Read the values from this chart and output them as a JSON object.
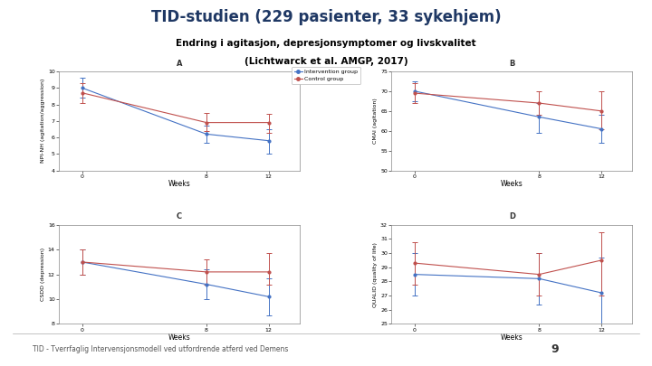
{
  "title": "TID-studien (229 pasienter, 33 sykehjem)",
  "subtitle1": "Endring i agitasjon, depresjonsymptomer og livskvalitet",
  "subtitle2": "(Lichtwarck et al. AMGP, 2017)",
  "footer": "TID - Tverrfaglig Intervensjonsmodell ved utfordrende atferd ved Demens",
  "page_number": "9",
  "title_color": "#1F3864",
  "subtitle_color": "#000000",
  "blue_color": "#4472C4",
  "red_color": "#C0504D",
  "weeks": [
    0,
    8,
    12
  ],
  "panel_A": {
    "label": "A",
    "ylabel": "NPI-NH (agitation/aggression)",
    "xlabel": "Weeks",
    "ylim": [
      4,
      10
    ],
    "yticks": [
      4,
      5,
      6,
      7,
      8,
      9,
      10
    ],
    "intervention": {
      "y": [
        9.0,
        6.2,
        5.8
      ],
      "yerr_lo": [
        0.6,
        0.5,
        0.8
      ],
      "yerr_hi": [
        0.6,
        0.5,
        0.7
      ]
    },
    "control": {
      "y": [
        8.7,
        6.9,
        6.9
      ],
      "yerr_lo": [
        0.6,
        0.5,
        0.6
      ],
      "yerr_hi": [
        0.6,
        0.6,
        0.5
      ]
    }
  },
  "panel_B": {
    "label": "B",
    "ylabel": "CMAI (agitation)",
    "xlabel": "Weeks",
    "ylim": [
      50,
      75
    ],
    "yticks": [
      50,
      55,
      60,
      65,
      70,
      75
    ],
    "intervention": {
      "y": [
        70.0,
        63.5,
        60.5
      ],
      "yerr_lo": [
        2.5,
        4.0,
        3.5
      ],
      "yerr_hi": [
        2.5,
        3.5,
        3.5
      ]
    },
    "control": {
      "y": [
        69.5,
        67.0,
        65.0
      ],
      "yerr_lo": [
        2.5,
        3.0,
        4.5
      ],
      "yerr_hi": [
        2.5,
        3.0,
        5.0
      ]
    }
  },
  "panel_C": {
    "label": "C",
    "ylabel": "CSDD (depression)",
    "xlabel": "Weeks",
    "ylim": [
      8,
      16
    ],
    "yticks": [
      8,
      10,
      12,
      14,
      16
    ],
    "intervention": {
      "y": [
        13.0,
        11.2,
        10.2
      ],
      "yerr_lo": [
        1.0,
        1.2,
        1.5
      ],
      "yerr_hi": [
        1.0,
        1.2,
        1.5
      ]
    },
    "control": {
      "y": [
        13.0,
        12.2,
        12.2
      ],
      "yerr_lo": [
        1.0,
        1.0,
        1.0
      ],
      "yerr_hi": [
        1.0,
        1.0,
        1.5
      ]
    }
  },
  "panel_D": {
    "label": "D",
    "ylabel": "QUALID (quality of life)",
    "xlabel": "Weeks",
    "ylim": [
      25,
      32
    ],
    "yticks": [
      25,
      26,
      27,
      28,
      29,
      30,
      31,
      32
    ],
    "intervention": {
      "y": [
        28.5,
        28.2,
        27.2
      ],
      "yerr_lo": [
        1.5,
        1.8,
        2.5
      ],
      "yerr_hi": [
        1.5,
        1.8,
        2.5
      ]
    },
    "control": {
      "y": [
        29.3,
        28.5,
        29.5
      ],
      "yerr_lo": [
        1.5,
        1.5,
        2.5
      ],
      "yerr_hi": [
        1.5,
        1.5,
        2.0
      ]
    }
  }
}
